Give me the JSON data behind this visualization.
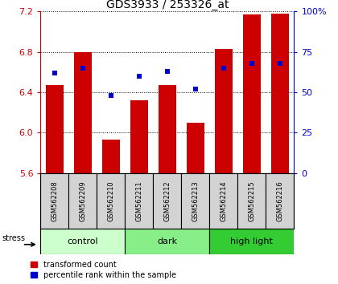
{
  "title": "GDS3933 / 253326_at",
  "samples": [
    "GSM562208",
    "GSM562209",
    "GSM562210",
    "GSM562211",
    "GSM562212",
    "GSM562213",
    "GSM562214",
    "GSM562215",
    "GSM562216"
  ],
  "transformed_counts": [
    6.47,
    6.8,
    5.93,
    6.32,
    6.47,
    6.1,
    6.83,
    7.17,
    7.18
  ],
  "percentile_ranks": [
    62,
    65,
    48,
    60,
    63,
    52,
    65,
    68,
    68
  ],
  "ylim_left": [
    5.6,
    7.2
  ],
  "ylim_right": [
    0,
    100
  ],
  "yticks_left": [
    5.6,
    6.0,
    6.4,
    6.8,
    7.2
  ],
  "yticks_right": [
    0,
    25,
    50,
    75,
    100
  ],
  "groups": [
    {
      "label": "control",
      "start": 0,
      "end": 3,
      "color": "#ccffcc"
    },
    {
      "label": "dark",
      "start": 3,
      "end": 6,
      "color": "#88ee88"
    },
    {
      "label": "high light",
      "start": 6,
      "end": 9,
      "color": "#33cc33"
    }
  ],
  "bar_color": "#cc0000",
  "dot_color": "#0000cc",
  "label_color_left": "#cc0000",
  "label_color_right": "#0000cc",
  "stress_label": "stress",
  "bar_width": 0.65,
  "dot_size": 25,
  "legend_bar": "transformed count",
  "legend_dot": "percentile rank within the sample"
}
